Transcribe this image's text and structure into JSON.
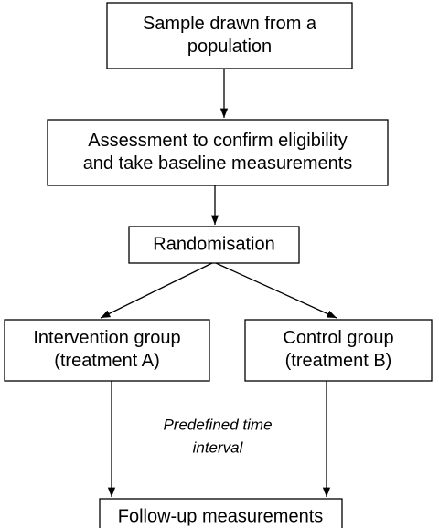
{
  "nodes": [
    {
      "lines": [
        "Sample drawn from a",
        "population"
      ]
    },
    {
      "lines": [
        "Assessment to confirm eligibility",
        "and take baseline measurements"
      ]
    },
    {
      "lines": [
        "Randomisation"
      ]
    },
    {
      "lines": [
        "Intervention group",
        "(treatment A)"
      ]
    },
    {
      "lines": [
        "Control group",
        "(treatment B)"
      ]
    },
    {
      "lines": [
        "Follow-up measurements"
      ]
    }
  ],
  "annotation": {
    "lines": [
      "Predefined time",
      "interval"
    ]
  }
}
